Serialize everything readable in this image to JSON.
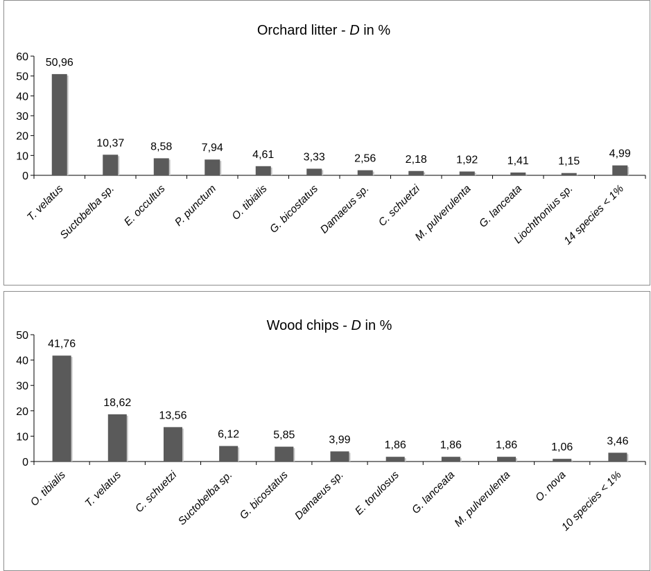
{
  "chart_data": [
    {
      "type": "bar",
      "title": "Orchard litter - D in %",
      "title_parts": [
        "Orchard litter - ",
        "D",
        " in %"
      ],
      "categories": [
        "T. velatus",
        "Suctobelba sp.",
        "E. occultus",
        "P. punctum",
        "O. tibialis",
        "G. bicostatus",
        "Damaeus sp.",
        "C. schuetzi",
        "M. pulverulenta",
        "G. lanceata",
        "Liochthonius sp.",
        "14 species < 1%"
      ],
      "values": [
        50.96,
        10.37,
        8.58,
        7.94,
        4.61,
        3.33,
        2.56,
        2.18,
        1.92,
        1.41,
        1.15,
        4.99
      ],
      "data_labels": [
        "50,96",
        "10,37",
        "8,58",
        "7,94",
        "4,61",
        "3,33",
        "2,56",
        "2,18",
        "1,92",
        "1,41",
        "1,15",
        "4,99"
      ],
      "yticks": [
        "0",
        "10",
        "20",
        "30",
        "40",
        "50",
        "60"
      ],
      "ylim": [
        0,
        60
      ],
      "bar_color": "#5a5a5a",
      "grid": false,
      "legend": "none"
    },
    {
      "type": "bar",
      "title": "Wood chips - D in %",
      "title_parts": [
        "Wood chips - ",
        "D",
        " in %"
      ],
      "categories": [
        "O. tibialis",
        "T. velatus",
        "C. schuetzi",
        "Suctobelba sp.",
        "G. bicostatus",
        "Damaeus sp.",
        "E. torulosus",
        "G. lanceata",
        "M. pulverulenta",
        "O. nova",
        "10 species < 1%"
      ],
      "values": [
        41.76,
        18.62,
        13.56,
        6.12,
        5.85,
        3.99,
        1.86,
        1.86,
        1.86,
        1.06,
        3.46
      ],
      "data_labels": [
        "41,76",
        "18,62",
        "13,56",
        "6,12",
        "5,85",
        "3,99",
        "1,86",
        "1,86",
        "1,86",
        "1,06",
        "3,46"
      ],
      "yticks": [
        "0",
        "10",
        "20",
        "30",
        "40",
        "50"
      ],
      "ylim": [
        0,
        50
      ],
      "bar_color": "#5a5a5a",
      "grid": false,
      "legend": "none"
    }
  ]
}
